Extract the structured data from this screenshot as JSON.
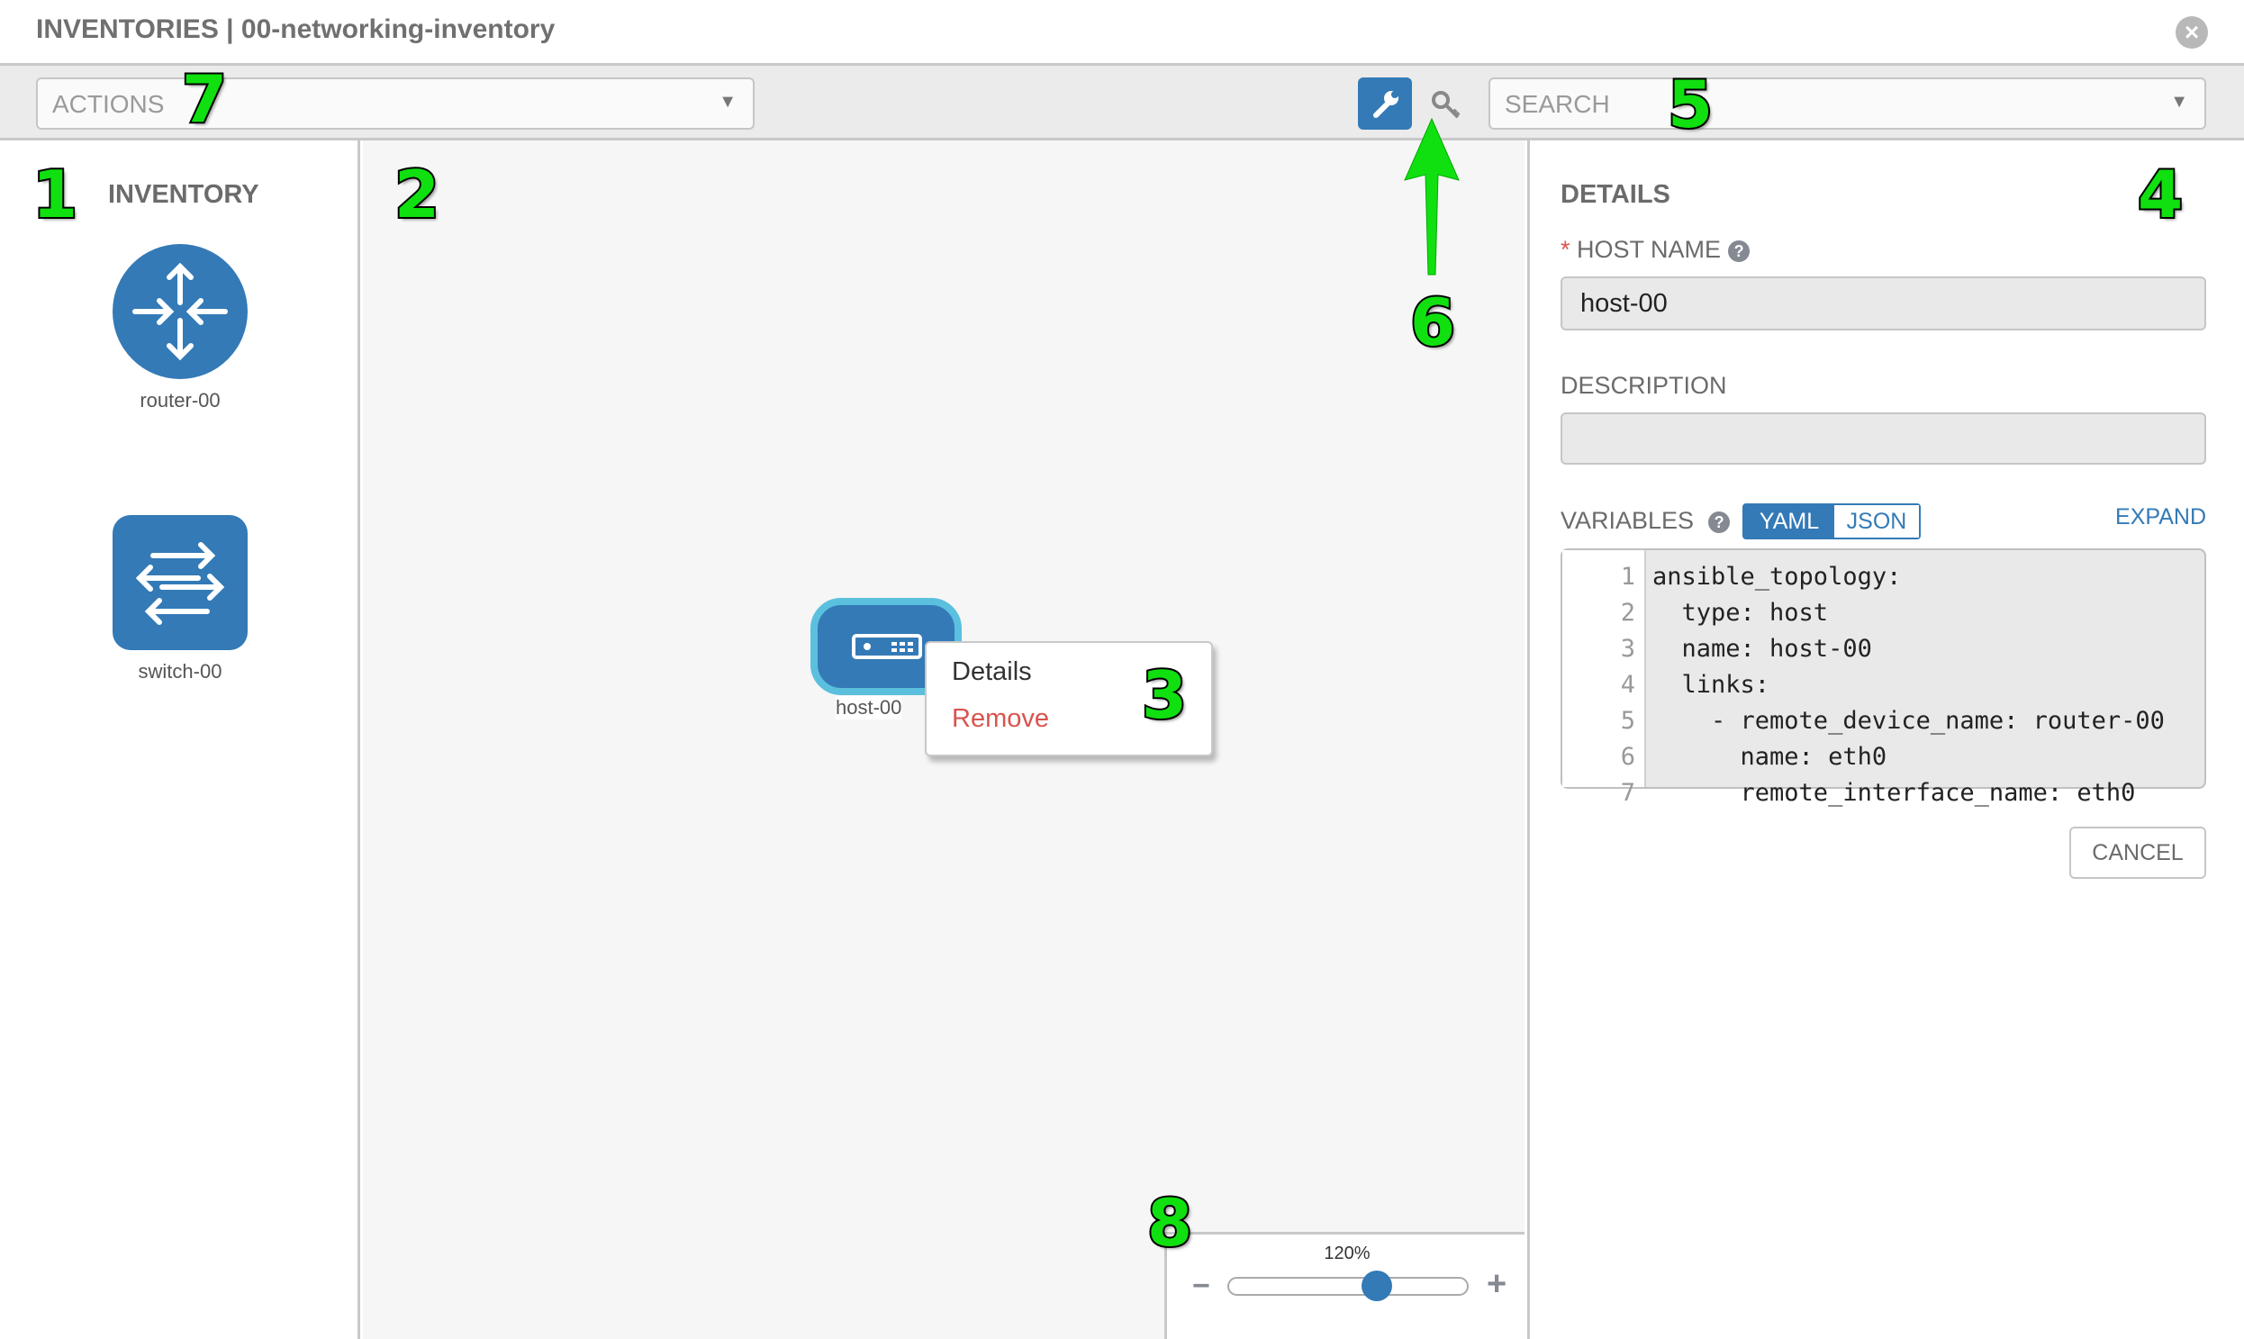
{
  "header": {
    "title": "INVENTORIES | 00-networking-inventory",
    "close_icon": "close-circle-icon"
  },
  "toolbar": {
    "actions_placeholder": "ACTIONS",
    "search_placeholder": "SEARCH",
    "wrench_icon": "wrench-icon",
    "key_icon": "key-icon"
  },
  "sidebar": {
    "title": "INVENTORY",
    "items": [
      {
        "label": "router-00",
        "icon": "router-icon"
      },
      {
        "label": "switch-00",
        "icon": "switch-icon"
      }
    ]
  },
  "canvas": {
    "node": {
      "label": "host-00",
      "icon": "host-server-icon"
    },
    "context_menu": {
      "items": [
        "Details",
        "Remove"
      ]
    }
  },
  "zoom": {
    "label": "120%",
    "value_fraction": 0.62,
    "minus": "−",
    "plus": "+"
  },
  "details": {
    "title": "DETAILS",
    "required_marker": "*",
    "host_name_label": "HOST NAME",
    "host_name_value": "host-00",
    "description_label": "DESCRIPTION",
    "description_value": "",
    "variables_label": "VARIABLES",
    "yaml_label": "YAML",
    "json_label": "JSON",
    "expand_label": "EXPAND",
    "code_lines": [
      {
        "n": "1",
        "text": "ansible_topology:"
      },
      {
        "n": "2",
        "text": "  type: host"
      },
      {
        "n": "3",
        "text": "  name: host-00"
      },
      {
        "n": "4",
        "text": "  links:"
      },
      {
        "n": "5",
        "text": "    - remote_device_name: router-00"
      },
      {
        "n": "6",
        "text": "      name: eth0"
      },
      {
        "n": "7",
        "text": "      remote_interface_name: eth0"
      }
    ],
    "cancel_label": "CANCEL"
  },
  "annotations": [
    "1",
    "2",
    "3",
    "4",
    "5",
    "6",
    "7",
    "8"
  ],
  "colors": {
    "accent": "#337ab7",
    "node_border": "#5bc0de",
    "remove": "#d9534f",
    "annotation": "#10e010"
  }
}
